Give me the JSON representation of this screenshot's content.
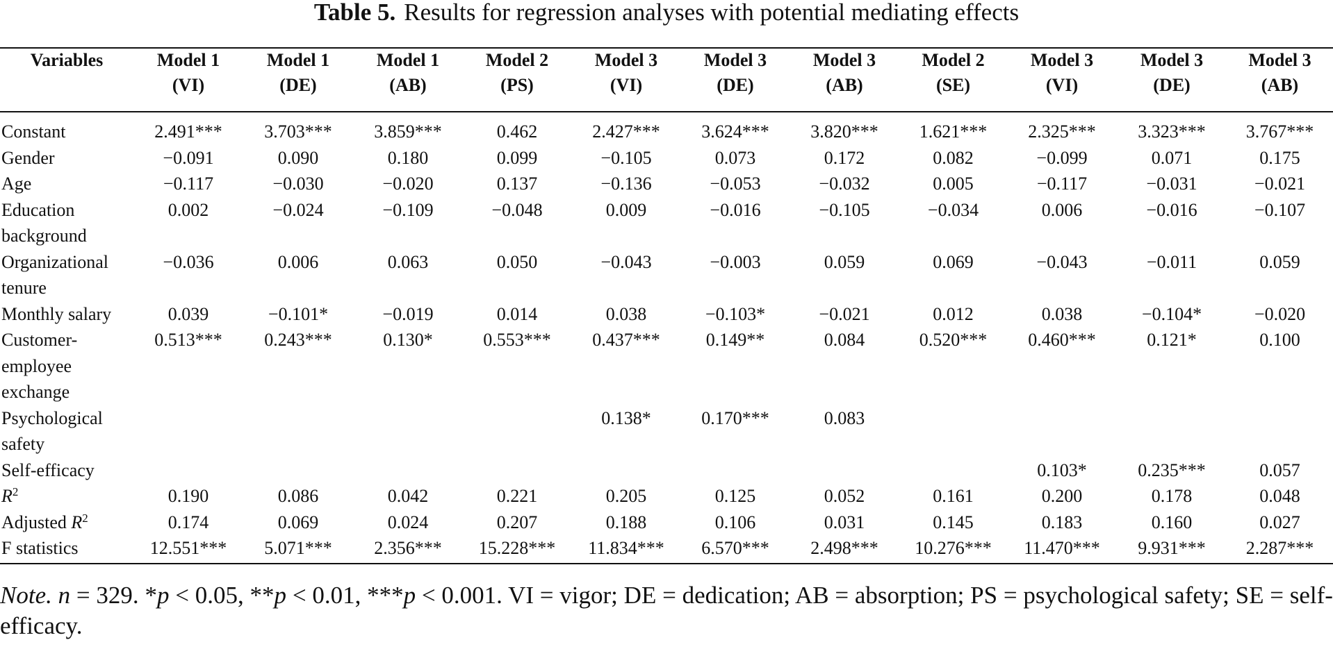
{
  "caption": {
    "label": "Table 5.",
    "title": "Results for regression analyses with potential mediating effects"
  },
  "header": {
    "variables": "Variables",
    "columns": [
      {
        "model": "Model 1",
        "sub": "(VI)"
      },
      {
        "model": "Model 1",
        "sub": "(DE)"
      },
      {
        "model": "Model 1",
        "sub": "(AB)"
      },
      {
        "model": "Model 2",
        "sub": "(PS)"
      },
      {
        "model": "Model 3",
        "sub": "(VI)"
      },
      {
        "model": "Model 3",
        "sub": "(DE)"
      },
      {
        "model": "Model 3",
        "sub": "(AB)"
      },
      {
        "model": "Model 2",
        "sub": "(SE)"
      },
      {
        "model": "Model 3",
        "sub": "(VI)"
      },
      {
        "model": "Model 3",
        "sub": "(DE)"
      },
      {
        "model": "Model 3",
        "sub": "(AB)"
      }
    ]
  },
  "rows": [
    {
      "label": [
        "Constant"
      ],
      "values": [
        "2.491***",
        "3.703***",
        "3.859***",
        "0.462",
        "2.427***",
        "3.624***",
        "3.820***",
        "1.621***",
        "2.325***",
        "3.323***",
        "3.767***"
      ]
    },
    {
      "label": [
        "Gender"
      ],
      "values": [
        "−0.091",
        "0.090",
        "0.180",
        "0.099",
        "−0.105",
        "0.073",
        "0.172",
        "0.082",
        "−0.099",
        "0.071",
        "0.175"
      ]
    },
    {
      "label": [
        "Age"
      ],
      "values": [
        "−0.117",
        "−0.030",
        "−0.020",
        "0.137",
        "−0.136",
        "−0.053",
        "−0.032",
        "0.005",
        "−0.117",
        "−0.031",
        "−0.021"
      ]
    },
    {
      "label": [
        "Education",
        "background"
      ],
      "values": [
        "0.002",
        "−0.024",
        "−0.109",
        "−0.048",
        "0.009",
        "−0.016",
        "−0.105",
        "−0.034",
        "0.006",
        "−0.016",
        "−0.107"
      ]
    },
    {
      "label": [
        "Organizational",
        "tenure"
      ],
      "values": [
        "−0.036",
        "0.006",
        "0.063",
        "0.050",
        "−0.043",
        "−0.003",
        "0.059",
        "0.069",
        "−0.043",
        "−0.011",
        "0.059"
      ]
    },
    {
      "label": [
        "Monthly salary"
      ],
      "values": [
        "0.039",
        "−0.101*",
        "−0.019",
        "0.014",
        "0.038",
        "−0.103*",
        "−0.021",
        "0.012",
        "0.038",
        "−0.104*",
        "−0.020"
      ]
    },
    {
      "label": [
        "Customer-",
        "employee",
        "exchange"
      ],
      "values": [
        "0.513***",
        "0.243***",
        "0.130*",
        "0.553***",
        "0.437***",
        "0.149**",
        "0.084",
        "0.520***",
        "0.460***",
        "0.121*",
        "0.100"
      ]
    },
    {
      "label": [
        "Psychological",
        "safety"
      ],
      "values": [
        "",
        "",
        "",
        "",
        "0.138*",
        "0.170***",
        "0.083",
        "",
        "",
        "",
        ""
      ]
    },
    {
      "label": [
        "Self-efficacy"
      ],
      "values": [
        "",
        "",
        "",
        "",
        "",
        "",
        "",
        "",
        "0.103*",
        "0.235***",
        "0.057"
      ]
    }
  ],
  "stat_rows": {
    "r2": {
      "symbol": "R",
      "sup": "2",
      "values": [
        "0.190",
        "0.086",
        "0.042",
        "0.221",
        "0.205",
        "0.125",
        "0.052",
        "0.161",
        "0.200",
        "0.178",
        "0.048"
      ]
    },
    "adj_r2": {
      "prefix": "Adjusted",
      "symbol": "R",
      "sup": "2",
      "values": [
        "0.174",
        "0.069",
        "0.024",
        "0.207",
        "0.188",
        "0.106",
        "0.031",
        "0.145",
        "0.183",
        "0.160",
        "0.027"
      ]
    },
    "f": {
      "label": "F statistics",
      "values": [
        "12.551***",
        "5.071***",
        "2.356***",
        "15.228***",
        "11.834***",
        "6.570***",
        "2.498***",
        "10.276***",
        "11.470***",
        "9.931***",
        "2.287***"
      ]
    }
  },
  "note": {
    "lead": "Note.",
    "n_label": "n",
    "n_text": " = 329. *",
    "p1": "p",
    "t1": " < 0.05, **",
    "p2": "p",
    "t2": " < 0.01, ***",
    "p3": "p",
    "t3": " < 0.001. VI = vigor; DE = dedication; AB = absorption; PS = psychological safety; SE = self-efficacy."
  }
}
